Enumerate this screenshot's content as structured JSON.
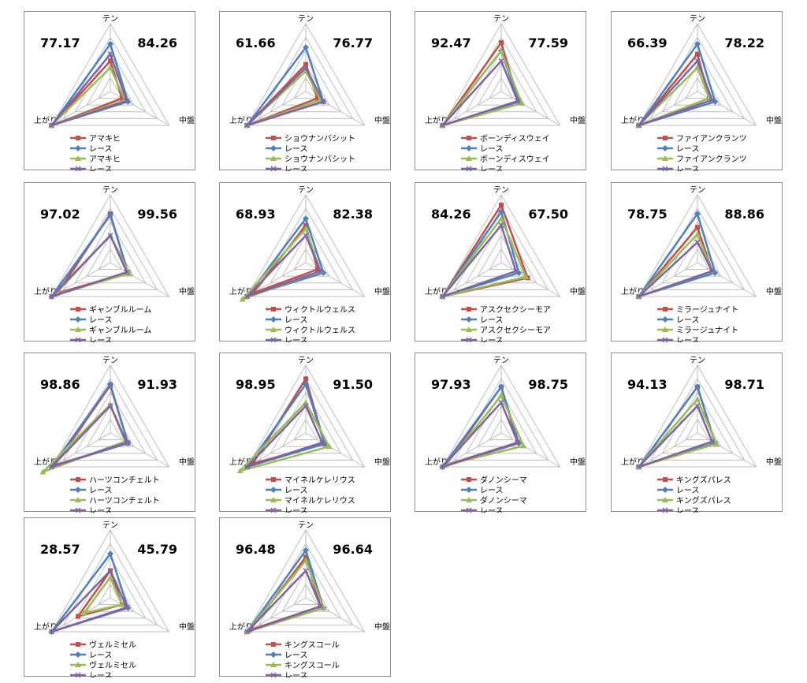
{
  "axes": [
    "テン",
    "中盤",
    "上がり"
  ],
  "colors": {
    "horse": "#c0504d",
    "race": "#4f81bd",
    "horse2": "#9bbb59",
    "race2": "#8064a2"
  },
  "chart_data": [
    {
      "type": "radar",
      "left_value": "77.17",
      "right_value": "84.26",
      "legend": [
        "アマキヒ",
        "レース",
        "アマキヒ",
        "レース"
      ],
      "series": [
        {
          "name": "アマキヒ",
          "values": [
            45,
            20,
            100
          ]
        },
        {
          "name": "レース",
          "values": [
            70,
            30,
            100
          ]
        },
        {
          "name": "アマキヒ",
          "values": [
            35,
            25,
            100
          ]
        },
        {
          "name": "レース",
          "values": [
            55,
            28,
            100
          ]
        }
      ]
    },
    {
      "type": "radar",
      "left_value": "61.66",
      "right_value": "76.77",
      "legend": [
        "ショウナンバシット",
        "レース",
        "ショウナンバシット",
        "レース"
      ],
      "series": [
        {
          "name": "ショウナンバシット",
          "values": [
            40,
            20,
            100
          ]
        },
        {
          "name": "レース",
          "values": [
            65,
            30,
            100
          ]
        },
        {
          "name": "ショウナンバシット",
          "values": [
            30,
            25,
            100
          ]
        },
        {
          "name": "レース",
          "values": [
            35,
            30,
            100
          ]
        }
      ]
    },
    {
      "type": "radar",
      "left_value": "92.47",
      "right_value": "77.59",
      "legend": [
        "ボーンディスウェイ",
        "レース",
        "ボーンディスウェイ",
        "レース"
      ],
      "series": [
        {
          "name": "ボーンディスウェイ",
          "values": [
            72,
            30,
            100
          ]
        },
        {
          "name": "レース",
          "values": [
            60,
            30,
            100
          ]
        },
        {
          "name": "ボーンディスウェイ",
          "values": [
            60,
            35,
            100
          ]
        },
        {
          "name": "レース",
          "values": [
            45,
            28,
            100
          ]
        }
      ]
    },
    {
      "type": "radar",
      "left_value": "66.39",
      "right_value": "78.22",
      "legend": [
        "ファイアンクランツ",
        "レース",
        "ファイアンクランツ",
        "レース"
      ],
      "series": [
        {
          "name": "ファイアンクランツ",
          "values": [
            55,
            20,
            100
          ]
        },
        {
          "name": "レース",
          "values": [
            70,
            30,
            100
          ]
        },
        {
          "name": "ファイアンクランツ",
          "values": [
            35,
            20,
            100
          ]
        },
        {
          "name": "レース",
          "values": [
            45,
            25,
            100
          ]
        }
      ]
    },
    {
      "type": "radar",
      "left_value": "97.02",
      "right_value": "99.56",
      "legend": [
        "ギャンブルルーム",
        "レース",
        "ギャンブルルーム",
        "レース"
      ],
      "series": [
        {
          "name": "ギャンブルルーム",
          "values": [
            72,
            30,
            90
          ]
        },
        {
          "name": "レース",
          "values": [
            70,
            30,
            100
          ]
        },
        {
          "name": "ギャンブルルーム",
          "values": [
            40,
            32,
            95
          ]
        },
        {
          "name": "レース",
          "values": [
            40,
            28,
            100
          ]
        }
      ]
    },
    {
      "type": "radar",
      "left_value": "68.93",
      "right_value": "82.38",
      "legend": [
        "ウィクトルウェルス",
        "レース",
        "ウィクトルウェルス",
        "レース"
      ],
      "series": [
        {
          "name": "ウィクトルウェルス",
          "values": [
            55,
            20,
            90
          ]
        },
        {
          "name": "レース",
          "values": [
            65,
            30,
            100
          ]
        },
        {
          "name": "ウィクトルウェルス",
          "values": [
            50,
            25,
            108
          ]
        },
        {
          "name": "レース",
          "values": [
            40,
            25,
            100
          ]
        }
      ]
    },
    {
      "type": "radar",
      "left_value": "84.26",
      "right_value": "67.50",
      "legend": [
        "アスクセクシーモア",
        "レース",
        "アスクセクシーモア",
        "レース"
      ],
      "series": [
        {
          "name": "アスクセクシーモア",
          "values": [
            85,
            45,
            100
          ]
        },
        {
          "name": "レース",
          "values": [
            75,
            30,
            100
          ]
        },
        {
          "name": "アスクセクシーモア",
          "values": [
            65,
            42,
            100
          ]
        },
        {
          "name": "レース",
          "values": [
            55,
            25,
            100
          ]
        }
      ]
    },
    {
      "type": "radar",
      "left_value": "78.75",
      "right_value": "88.86",
      "legend": [
        "ミラージュナイト",
        "レース",
        "ミラージュナイト",
        "レース"
      ],
      "series": [
        {
          "name": "ミラージュナイト",
          "values": [
            52,
            25,
            100
          ]
        },
        {
          "name": "レース",
          "values": [
            72,
            30,
            100
          ]
        },
        {
          "name": "ミラージュナイト",
          "values": [
            42,
            25,
            100
          ]
        },
        {
          "name": "レース",
          "values": [
            30,
            25,
            100
          ]
        }
      ]
    },
    {
      "type": "radar",
      "left_value": "98.86",
      "right_value": "91.93",
      "legend": [
        "ハーツコンチェルト",
        "レース",
        "ハーツコンチェルト",
        "レース"
      ],
      "series": [
        {
          "name": "ハーツコンチェルト",
          "values": [
            70,
            30,
            95
          ]
        },
        {
          "name": "レース",
          "values": [
            72,
            30,
            100
          ]
        },
        {
          "name": "ハーツコンチェルト",
          "values": [
            42,
            25,
            115
          ]
        },
        {
          "name": "レース",
          "values": [
            40,
            28,
            100
          ]
        }
      ]
    },
    {
      "type": "radar",
      "left_value": "98.95",
      "right_value": "91.50",
      "legend": [
        "マイネルケレリウス",
        "レース",
        "マイネルケレリウス",
        "レース"
      ],
      "series": [
        {
          "name": "マイネルケレリウス",
          "values": [
            80,
            32,
            90
          ]
        },
        {
          "name": "レース",
          "values": [
            72,
            32,
            100
          ]
        },
        {
          "name": "マイネルケレリウス",
          "values": [
            45,
            40,
            112
          ]
        },
        {
          "name": "レース",
          "values": [
            40,
            28,
            100
          ]
        }
      ]
    },
    {
      "type": "radar",
      "left_value": "97.93",
      "right_value": "98.75",
      "legend": [
        "ダノンシーマ",
        "レース",
        "ダノンシーマ",
        "レース"
      ],
      "series": [
        {
          "name": "ダノンシーマ",
          "values": [
            68,
            28,
            95
          ]
        },
        {
          "name": "レース",
          "values": [
            68,
            30,
            100
          ]
        },
        {
          "name": "ダノンシーマ",
          "values": [
            55,
            38,
            95
          ]
        },
        {
          "name": "レース",
          "values": [
            45,
            28,
            100
          ]
        }
      ]
    },
    {
      "type": "radar",
      "left_value": "94.13",
      "right_value": "98.71",
      "legend": [
        "キングズパレス",
        "レース",
        "キングズパレス",
        "レース"
      ],
      "series": [
        {
          "name": "キングズパレス",
          "values": [
            68,
            30,
            100
          ]
        },
        {
          "name": "レース",
          "values": [
            68,
            30,
            100
          ]
        },
        {
          "name": "キングズパレス",
          "values": [
            50,
            32,
            100
          ]
        },
        {
          "name": "レース",
          "values": [
            40,
            25,
            100
          ]
        }
      ]
    },
    {
      "type": "radar",
      "left_value": "28.57",
      "right_value": "45.79",
      "legend": [
        "ヴェルミセル",
        "レース",
        "ヴェルミセル",
        "レース"
      ],
      "series": [
        {
          "name": "ヴェルミセル",
          "values": [
            40,
            20,
            55
          ]
        },
        {
          "name": "レース",
          "values": [
            65,
            30,
            100
          ]
        },
        {
          "name": "ヴェルミセル",
          "values": [
            30,
            20,
            45
          ]
        },
        {
          "name": "レース",
          "values": [
            40,
            28,
            100
          ]
        }
      ]
    },
    {
      "type": "radar",
      "left_value": "96.48",
      "right_value": "96.64",
      "legend": [
        "キングスコール",
        "レース",
        "キングスコール",
        "レース"
      ],
      "series": [
        {
          "name": "キングスコール",
          "values": [
            60,
            25,
            95
          ]
        },
        {
          "name": "レース",
          "values": [
            70,
            30,
            100
          ]
        },
        {
          "name": "キングスコール",
          "values": [
            55,
            30,
            100
          ]
        },
        {
          "name": "レース",
          "values": [
            40,
            25,
            100
          ]
        }
      ]
    }
  ]
}
